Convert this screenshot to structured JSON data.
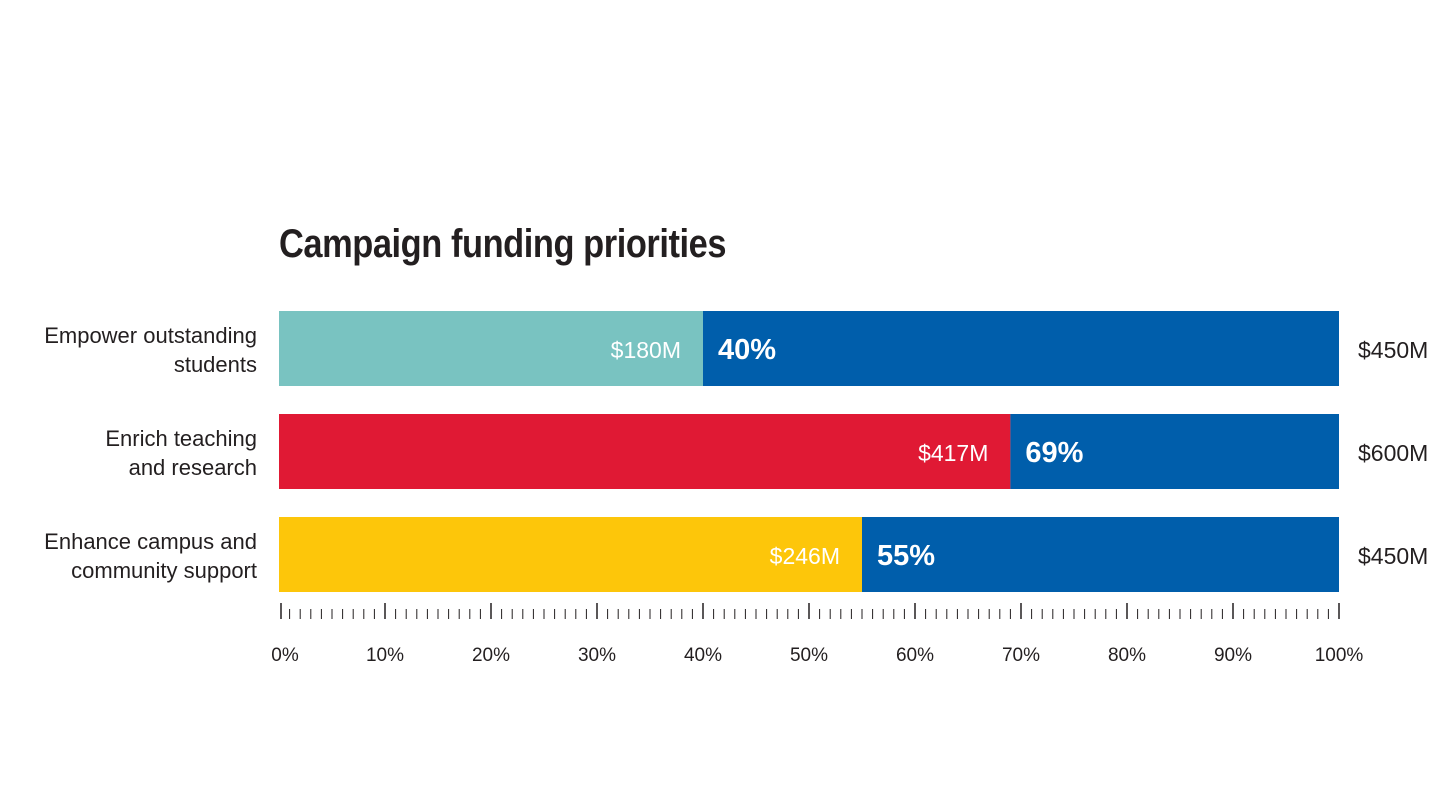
{
  "chart_data": {
    "type": "bar",
    "orientation": "horizontal",
    "stacked": true,
    "title": "Campaign funding priorities",
    "categories": [
      "Empower outstanding students",
      "Enrich teaching and research",
      "Enhance campus and community support"
    ],
    "category_lines": [
      [
        "Empower outstanding",
        "students"
      ],
      [
        "Enrich teaching",
        "and research"
      ],
      [
        "Enhance campus and",
        "community support"
      ]
    ],
    "raised_labels": [
      "$180M",
      "$417M",
      "$246M"
    ],
    "percent_values": [
      40,
      69,
      55
    ],
    "percent_labels": [
      "40%",
      "69%",
      "55%"
    ],
    "goal_labels": [
      "$450M",
      "$600M",
      "$450M"
    ],
    "raised_colors": [
      "#79c3c1",
      "#e01934",
      "#fdc60a"
    ],
    "remaining_color": "#005eab",
    "xlim": [
      0,
      100
    ],
    "x_ticks": [
      "0%",
      "10%",
      "20%",
      "30%",
      "40%",
      "50%",
      "60%",
      "70%",
      "80%",
      "90%",
      "100%"
    ],
    "minor_tick_step": 1,
    "grid": false
  }
}
